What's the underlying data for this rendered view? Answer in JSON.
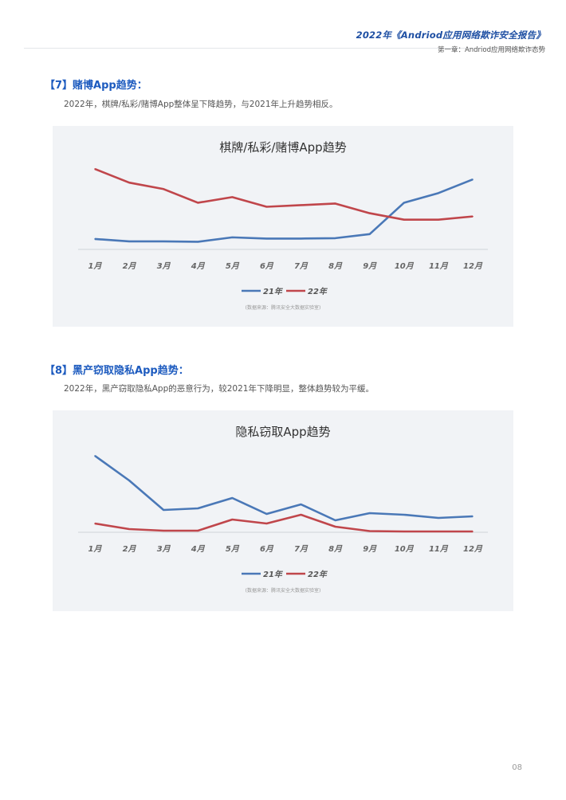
{
  "header": {
    "title": "2022年《Andriod应用网络欺诈安全报告》",
    "subtitle": "第一章：Andriod应用网络欺诈态势"
  },
  "sections": [
    {
      "heading": "【7】赌博App趋势：",
      "text": "2022年，棋牌/私彩/赌博App整体呈下降趋势，与2021年上升趋势相反。"
    },
    {
      "heading": "【8】黑产窃取隐私App趋势：",
      "text": "2022年，黑产窃取隐私App的恶意行为，较2021年下降明显，整体趋势较为平缓。"
    }
  ],
  "colors": {
    "series_21": "#4a78b7",
    "series_22": "#c0464b",
    "heading": "#1d5bbf"
  },
  "page_number": "08",
  "chart_data": [
    {
      "type": "line",
      "title": "棋牌/私彩/赌博App趋势",
      "categories": [
        "1月",
        "2月",
        "3月",
        "4月",
        "5月",
        "6月",
        "7月",
        "8月",
        "9月",
        "10月",
        "11月",
        "12月"
      ],
      "series": [
        {
          "name": "21年",
          "color": "#4a78b7",
          "values": [
            10,
            7,
            7,
            6.5,
            12,
            10.5,
            10.5,
            11,
            16,
            55,
            67,
            84
          ]
        },
        {
          "name": "22年",
          "color": "#c0464b",
          "values": [
            97,
            80,
            72,
            55,
            62,
            50,
            52,
            54,
            42,
            34,
            34,
            38
          ]
        }
      ],
      "ylim": [
        0,
        100
      ],
      "grid": false,
      "legend": "bottom",
      "source": "(数据来源：腾讯安全大数据实验室)"
    },
    {
      "type": "line",
      "title": "隐私窃取App趋势",
      "categories": [
        "1月",
        "2月",
        "3月",
        "4月",
        "5月",
        "6月",
        "7月",
        "8月",
        "9月",
        "10月",
        "11月",
        "12月"
      ],
      "series": [
        {
          "name": "21年",
          "color": "#4a78b7",
          "values": [
            96,
            65,
            28,
            30,
            43,
            23,
            35,
            15,
            24,
            22,
            18,
            20
          ]
        },
        {
          "name": "22年",
          "color": "#c0464b",
          "values": [
            11,
            4,
            2,
            2,
            16,
            11,
            22,
            7,
            1.5,
            1,
            1,
            1
          ]
        }
      ],
      "ylim": [
        0,
        100
      ],
      "grid": false,
      "legend": "bottom",
      "source": "(数据来源：腾讯安全大数据实验室)"
    }
  ]
}
